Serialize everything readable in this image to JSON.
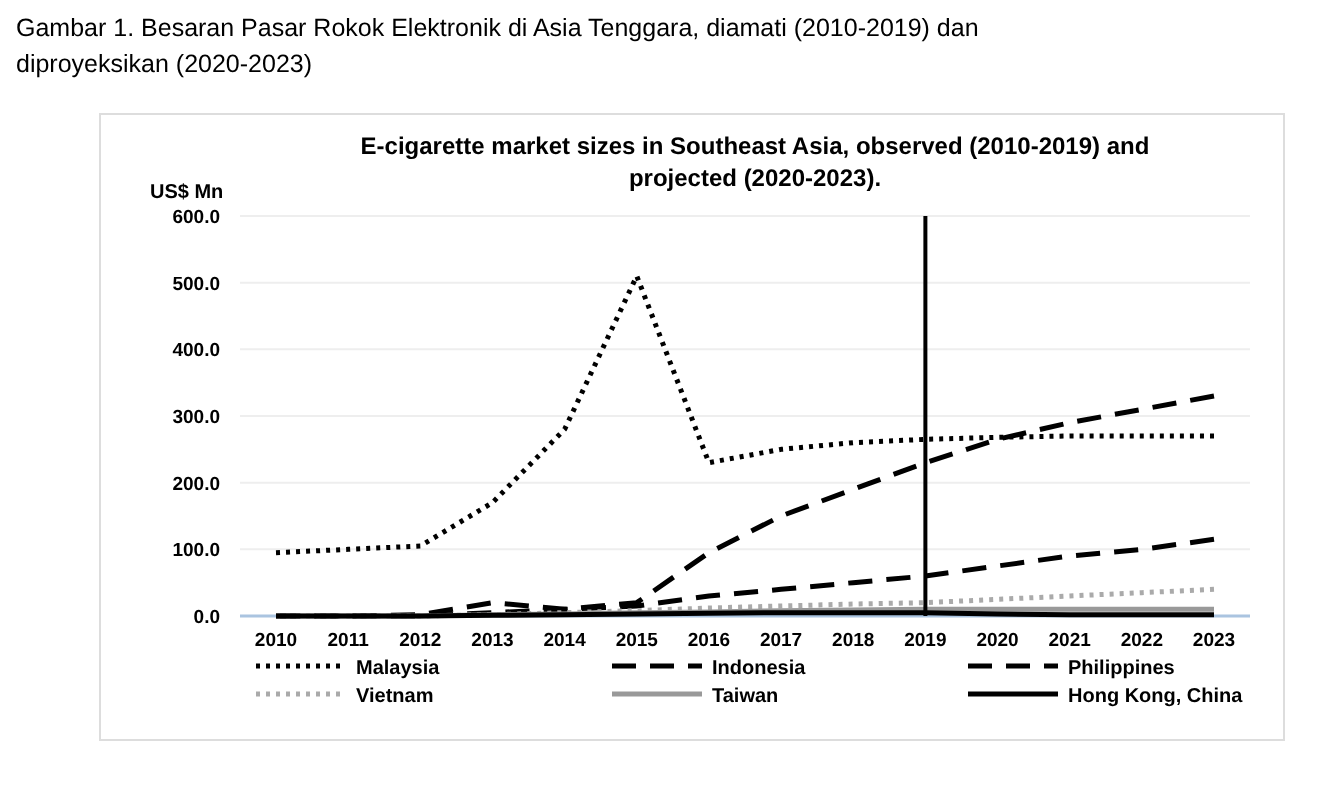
{
  "chart_data": {
    "type": "line",
    "title": "Gambar 1. Besaran Pasar Rokok Elektronik di Asia Tenggara, diamati (2010-2019) dan diproyeksikan (2020-2023)",
    "subtitle": "E-cigarette market sizes in Southeast Asia, observed (2010-2019) and projected (2020-2023).",
    "ylabel": "US$ Mn",
    "categories": [
      "2010",
      "2011",
      "2012",
      "2013",
      "2014",
      "2015",
      "2016",
      "2017",
      "2018",
      "2019",
      "2020",
      "2021",
      "2022",
      "2023"
    ],
    "series": [
      {
        "name": "Malaysia",
        "color": "#000000",
        "line_style": "dotted",
        "values": [
          95,
          100,
          105,
          170,
          280,
          510,
          230,
          250,
          260,
          265,
          268,
          270,
          270,
          270
        ]
      },
      {
        "name": "Indonesia",
        "color": "#000000",
        "line_style": "dashed",
        "values": [
          0,
          0,
          2,
          20,
          10,
          20,
          95,
          150,
          190,
          230,
          265,
          290,
          310,
          330
        ]
      },
      {
        "name": "Philippines",
        "color": "#000000",
        "line_style": "dashed",
        "values": [
          0,
          0,
          0,
          5,
          10,
          15,
          30,
          40,
          50,
          60,
          75,
          90,
          100,
          115
        ]
      },
      {
        "name": "Vietnam",
        "color": "#aaaaaa",
        "line_style": "dotted",
        "values": [
          0,
          0,
          0,
          2,
          5,
          8,
          12,
          15,
          18,
          20,
          25,
          30,
          35,
          40
        ]
      },
      {
        "name": "Taiwan",
        "color": "#999999",
        "line_style": "solid",
        "values": [
          0,
          0,
          0,
          2,
          3,
          5,
          6,
          8,
          9,
          10,
          10,
          10,
          10,
          10
        ]
      },
      {
        "name": "Hong Kong, China",
        "color": "#000000",
        "line_style": "solid",
        "values": [
          0,
          0,
          0,
          1,
          2,
          3,
          4,
          5,
          5,
          5,
          3,
          2,
          2,
          2
        ]
      }
    ],
    "ylim": [
      0,
      600
    ],
    "yticks": [
      {
        "value": 0,
        "label": "0.0"
      },
      {
        "value": 100,
        "label": "100.0"
      },
      {
        "value": 200,
        "label": "200.0"
      },
      {
        "value": 300,
        "label": "300.0"
      },
      {
        "value": 400,
        "label": "400.0"
      },
      {
        "value": 500,
        "label": "500.0"
      },
      {
        "value": 600,
        "label": "600.0"
      }
    ],
    "grid": "y",
    "legend": "bottom",
    "ref_lines": [
      {
        "axis": "x",
        "value": "2019",
        "color": "#000000"
      }
    ]
  }
}
